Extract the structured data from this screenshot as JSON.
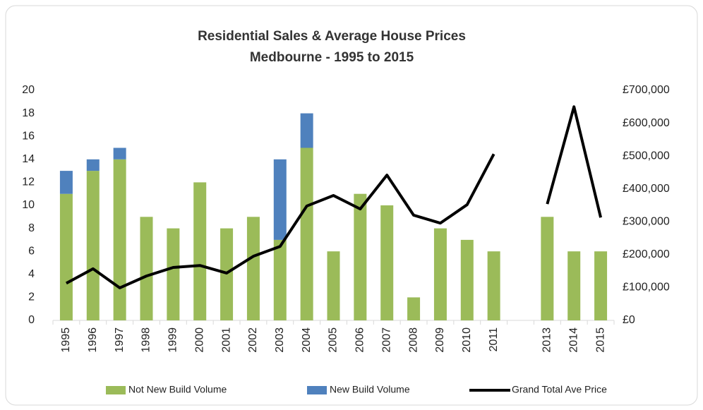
{
  "chart_data": {
    "type": "bar",
    "title": "Residential Sales & Average House Prices",
    "subtitle": "Medbourne - 1995 to 2015",
    "categories": [
      "1995",
      "1996",
      "1997",
      "1998",
      "1999",
      "2000",
      "2001",
      "2002",
      "2003",
      "2004",
      "2005",
      "2006",
      "2007",
      "2008",
      "2009",
      "2010",
      "2011",
      null,
      "2013",
      "2014",
      "2015"
    ],
    "series": [
      {
        "name": "Not New Build Volume",
        "color": "#9bbb59",
        "type": "bar",
        "values": [
          11,
          13,
          14,
          9,
          8,
          12,
          8,
          9,
          7,
          15,
          6,
          11,
          10,
          2,
          8,
          7,
          6,
          null,
          9,
          6,
          6
        ]
      },
      {
        "name": "New Build  Volume",
        "color": "#4f81bd",
        "type": "bar",
        "values": [
          2,
          1,
          1,
          null,
          null,
          null,
          null,
          null,
          7,
          3,
          null,
          null,
          null,
          null,
          null,
          null,
          null,
          null,
          null,
          null,
          null
        ]
      },
      {
        "name": "Grand Total Ave Price",
        "color": "#000000",
        "type": "line",
        "axis": "y2",
        "values": [
          113000,
          157000,
          99000,
          135000,
          161000,
          167000,
          144000,
          195000,
          225000,
          348000,
          380000,
          339000,
          442000,
          320000,
          296000,
          352000,
          506000,
          null,
          354000,
          650000,
          313000
        ]
      }
    ],
    "ylim": [
      0,
      20
    ],
    "yticks": [
      0,
      2,
      4,
      6,
      8,
      10,
      12,
      14,
      16,
      18,
      20
    ],
    "y2lim": [
      0,
      700000
    ],
    "y2ticks": [
      {
        "value": 0,
        "label": "£0"
      },
      {
        "value": 100000,
        "label": "£100,000"
      },
      {
        "value": 200000,
        "label": "£200,000"
      },
      {
        "value": 300000,
        "label": "£300,000"
      },
      {
        "value": 400000,
        "label": "£400,000"
      },
      {
        "value": 500000,
        "label": "£500,000"
      },
      {
        "value": 600000,
        "label": "£600,000"
      },
      {
        "value": 700000,
        "label": "£700,000"
      }
    ],
    "legend": "bottom",
    "grid": false
  }
}
